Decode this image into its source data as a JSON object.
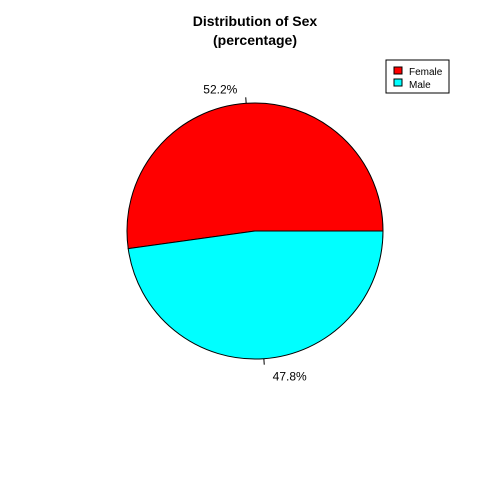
{
  "chart_data": {
    "type": "pie",
    "title": "Distribution of Sex",
    "subtitle": "(percentage)",
    "categories": [
      "Female",
      "Male"
    ],
    "values": [
      52.2,
      47.8
    ],
    "labels": [
      "52.2%",
      "47.8%"
    ],
    "colors": [
      "#FF0000",
      "#00FFFF"
    ],
    "legend": {
      "position": "top-right",
      "entries": [
        "Female",
        "Male"
      ]
    }
  }
}
